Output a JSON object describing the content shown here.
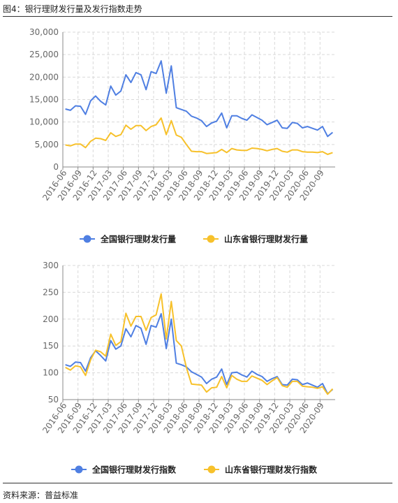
{
  "figure": {
    "title": "图4：银行理财发行量及发行指数走势",
    "source": "资料来源：普益标准"
  },
  "colors": {
    "national": "#4f7fe2",
    "shandong": "#f7c12b",
    "grid": "#d9d9d9",
    "axis": "#888888"
  },
  "chart_data": [
    {
      "type": "line",
      "title": "",
      "xlabel": "",
      "ylabel": "",
      "ylim": [
        0,
        30000
      ],
      "yticks": [
        "0",
        "5,000",
        "10,000",
        "15,000",
        "20,000",
        "25,000",
        "30,000"
      ],
      "grid": true,
      "legend_position": "bottom",
      "x_tick_labels": [
        "2016-06",
        "2016-09",
        "2016-12",
        "2017-03",
        "2017-06",
        "2017-09",
        "2017-12",
        "2018-03",
        "2018-06",
        "2018-09",
        "2018-12",
        "2019-03",
        "2019-06",
        "2019-09",
        "2019-12",
        "2020-03",
        "2020-06",
        "2020-09"
      ],
      "series": [
        {
          "name": "全国银行理财发行量",
          "color": "#4f7fe2",
          "values": [
            12900,
            12600,
            13600,
            13500,
            11700,
            14700,
            15800,
            14600,
            13800,
            18000,
            16000,
            16900,
            20500,
            18800,
            21000,
            20500,
            17200,
            21200,
            20800,
            23600,
            16400,
            22500,
            13200,
            12800,
            12400,
            11300,
            10900,
            10300,
            9000,
            9800,
            10200,
            12000,
            8700,
            11400,
            11400,
            10800,
            10400,
            11600,
            11000,
            10400,
            9400,
            9900,
            10400,
            8700,
            8600,
            9900,
            9700,
            8700,
            9000,
            8600,
            8200,
            9000,
            6800,
            7700
          ]
        },
        {
          "name": "山东省银行理财发行量",
          "color": "#f7c12b",
          "values": [
            4900,
            4700,
            5100,
            5100,
            4300,
            5700,
            6400,
            6300,
            5900,
            7600,
            6800,
            7200,
            9300,
            8400,
            9200,
            9200,
            8100,
            9000,
            9400,
            10900,
            7200,
            10300,
            7100,
            6600,
            5000,
            3500,
            3400,
            3400,
            3000,
            3100,
            3200,
            3900,
            3200,
            4100,
            3800,
            3700,
            3700,
            4200,
            4100,
            3900,
            3600,
            3900,
            4100,
            3500,
            3300,
            3800,
            3800,
            3400,
            3300,
            3300,
            3200,
            3400,
            2800,
            3200
          ]
        }
      ]
    },
    {
      "type": "line",
      "title": "",
      "xlabel": "",
      "ylabel": "",
      "ylim": [
        50,
        300
      ],
      "yticks": [
        "50",
        "100",
        "150",
        "200",
        "250",
        "300"
      ],
      "grid": true,
      "legend_position": "bottom",
      "x_tick_labels": [
        "2016-06",
        "2016-09",
        "2016-12",
        "2017-03",
        "2017-06",
        "2017-09",
        "2017-12",
        "2018-03",
        "2018-06",
        "2018-09",
        "2018-12",
        "2019-03",
        "2019-06",
        "2019-09",
        "2019-12",
        "2020-03",
        "2020-06",
        "2020-09"
      ],
      "series": [
        {
          "name": "全国银行理财发行指数",
          "color": "#4f7fe2",
          "values": [
            115,
            112,
            120,
            119,
            103,
            128,
            141,
            132,
            122,
            160,
            144,
            150,
            182,
            167,
            188,
            183,
            153,
            188,
            185,
            210,
            145,
            200,
            118,
            115,
            111,
            102,
            97,
            92,
            80,
            88,
            92,
            107,
            78,
            100,
            101,
            96,
            92,
            103,
            97,
            93,
            84,
            89,
            93,
            78,
            77,
            88,
            87,
            78,
            81,
            77,
            73,
            80,
            61,
            69
          ]
        },
        {
          "name": "山东省银行理财发行指数",
          "color": "#f7c12b",
          "values": [
            110,
            105,
            113,
            111,
            95,
            124,
            142,
            139,
            131,
            172,
            151,
            158,
            211,
            187,
            205,
            205,
            179,
            203,
            208,
            247,
            163,
            233,
            160,
            150,
            110,
            79,
            78,
            77,
            64,
            72,
            73,
            93,
            72,
            95,
            88,
            84,
            84,
            94,
            90,
            86,
            78,
            85,
            91,
            76,
            73,
            84,
            84,
            75,
            74,
            73,
            71,
            74,
            60,
            70
          ]
        }
      ]
    }
  ]
}
